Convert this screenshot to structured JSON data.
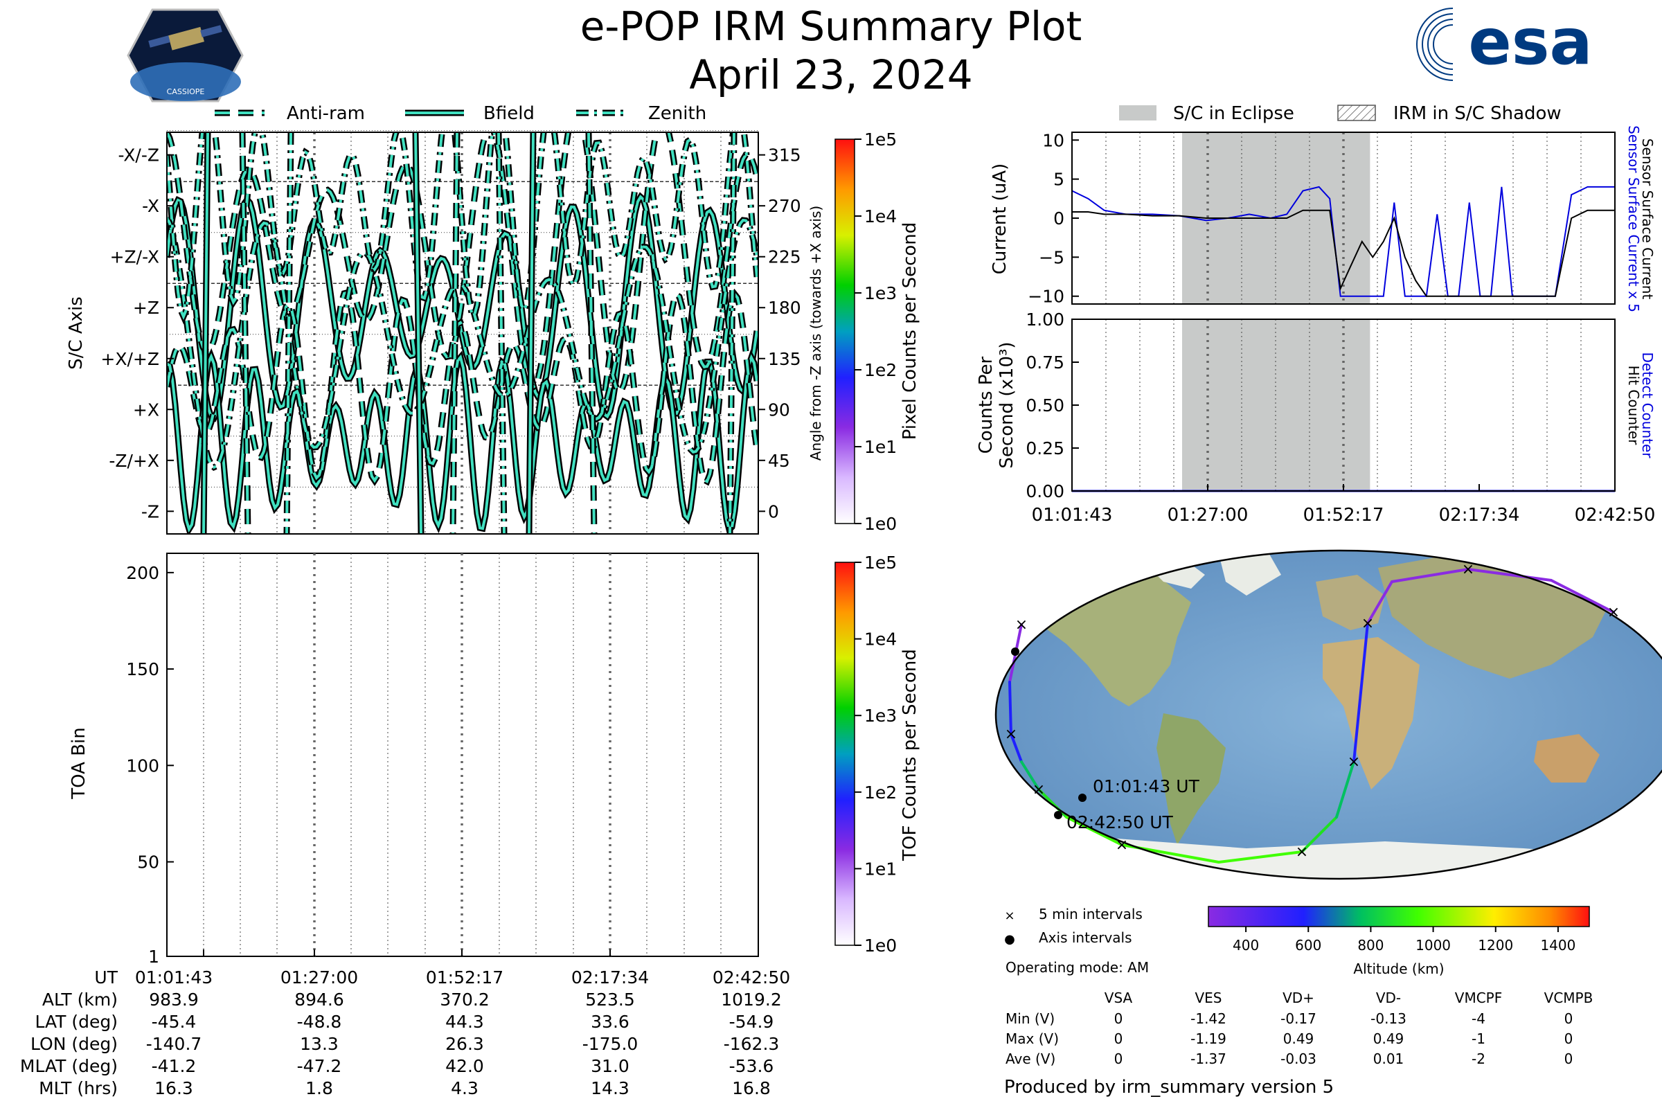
{
  "header": {
    "title": "e-POP IRM Summary Plot",
    "date": "April 23, 2024",
    "left_logo_caption": "CASSIOPE",
    "right_logo_text": "esa"
  },
  "colors": {
    "trace_outline": "#000000",
    "trace_fill": "#40e0c0",
    "eclipse_shade": "#c8cac9",
    "surface_current": "#0000dd",
    "hit_counter": "#0000dd"
  },
  "legend_top_left": {
    "entries": [
      {
        "label": "Anti-ram",
        "style": "dashed"
      },
      {
        "label": "Bfield",
        "style": "solid"
      },
      {
        "label": "Zenith",
        "style": "dashdot"
      }
    ]
  },
  "legend_top_right": {
    "entries": [
      {
        "label": "S/C in Eclipse",
        "style": "gray-fill"
      },
      {
        "label": "IRM in S/C Shadow",
        "style": "hatch"
      }
    ]
  },
  "time_axis": {
    "ticks": [
      "01:01:43",
      "01:27:00",
      "01:52:17",
      "02:17:34",
      "02:42:50"
    ]
  },
  "ephemeris": {
    "row_labels": [
      "UT",
      "ALT (km)",
      "LAT (deg)",
      "LON (deg)",
      "MLAT (deg)",
      "MLT (hrs)"
    ],
    "columns": [
      {
        "UT": "01:01:43",
        "ALT": "983.9",
        "LAT": "-45.4",
        "LON": "-140.7",
        "MLAT": "-41.2",
        "MLT": "16.3"
      },
      {
        "UT": "01:27:00",
        "ALT": "894.6",
        "LAT": "-48.8",
        "LON": "13.3",
        "MLAT": "-47.2",
        "MLT": "1.8"
      },
      {
        "UT": "01:52:17",
        "ALT": "370.2",
        "LAT": "44.3",
        "LON": "26.3",
        "MLAT": "42.0",
        "MLT": "4.3"
      },
      {
        "UT": "02:17:34",
        "ALT": "523.5",
        "LAT": "33.6",
        "LON": "-175.0",
        "MLAT": "31.0",
        "MLT": "14.3"
      },
      {
        "UT": "02:42:50",
        "ALT": "1019.2",
        "LAT": "-54.9",
        "LON": "-162.3",
        "MLAT": "-53.6",
        "MLT": "16.8"
      }
    ]
  },
  "map": {
    "start_label": "01:01:43 UT",
    "end_label": "02:42:50 UT",
    "legend": [
      {
        "marker": "×",
        "label": "5 min intervals"
      },
      {
        "marker": "●",
        "label": "Axis intervals"
      }
    ],
    "operating_mode": "Operating mode: AM",
    "altitude_colorbar_label": "Altitude (km)",
    "altitude_ticks": [
      "400",
      "600",
      "800",
      "1000",
      "1200",
      "1400"
    ]
  },
  "voltage_table": {
    "headers": [
      "",
      "VSA",
      "VES",
      "VD+",
      "VD-",
      "VMCPF",
      "VCMPB"
    ],
    "rows": [
      [
        "Min (V)",
        "0",
        "-1.42",
        "-0.17",
        "-0.13",
        "-4",
        "0"
      ],
      [
        "Max (V)",
        "0",
        "-1.19",
        "0.49",
        "0.49",
        "-1",
        "0"
      ],
      [
        "Ave (V)",
        "0",
        "-1.37",
        "-0.03",
        "0.01",
        "-2",
        "0"
      ]
    ]
  },
  "footer": "Produced by irm_summary version 5",
  "chart_data": [
    {
      "id": "sc_axis_panel",
      "type": "line",
      "ylabel": "S/C Axis",
      "y2label": "Angle from -Z axis (towards +X axis)",
      "ylim": [
        -20,
        335
      ],
      "y_category_ticks": [
        {
          "value": 0,
          "label": "-Z"
        },
        {
          "value": 45,
          "label": "-Z/+X"
        },
        {
          "value": 90,
          "label": "+X"
        },
        {
          "value": 135,
          "label": "+X/+Z"
        },
        {
          "value": 180,
          "label": "+Z"
        },
        {
          "value": 225,
          "label": "+Z/-X"
        },
        {
          "value": 270,
          "label": "-X"
        },
        {
          "value": 315,
          "label": "-X/-Z"
        }
      ],
      "y2_ticks": [
        "0",
        "45",
        "90",
        "135",
        "180",
        "225",
        "270",
        "315"
      ],
      "series": [
        {
          "name": "Anti-ram",
          "style": "dashed"
        },
        {
          "name": "Bfield",
          "style": "solid"
        },
        {
          "name": "Zenith",
          "style": "dashdot"
        }
      ],
      "colorbar": {
        "label": "Pixel Counts per Second",
        "ticks": [
          "1e0",
          "1e1",
          "1e2",
          "1e3",
          "1e4",
          "1e5"
        ]
      }
    },
    {
      "id": "toa_panel",
      "type": "heatmap",
      "ylabel": "TOA Bin",
      "ylim": [
        1,
        210
      ],
      "y_ticks": [
        "1",
        "50",
        "100",
        "150",
        "200"
      ],
      "values": [],
      "colorbar": {
        "label": "TOF Counts per Second",
        "ticks": [
          "1e0",
          "1e1",
          "1e2",
          "1e3",
          "1e4",
          "1e5"
        ]
      }
    },
    {
      "id": "current_panel",
      "type": "line",
      "ylabel": "Current (uA)",
      "ylim": [
        -11,
        11
      ],
      "y_ticks": [
        "10",
        "5",
        "0",
        "−5",
        "−10"
      ],
      "right_labels": [
        "Sensor Surface Current x 5",
        "Sensor Surface Current"
      ],
      "x_minutes": [
        0,
        3,
        6,
        10,
        15,
        20,
        25,
        29,
        33,
        37,
        40,
        43,
        46,
        48,
        50,
        52,
        54,
        56,
        58,
        60,
        62,
        64,
        66,
        68,
        70,
        72,
        74,
        76,
        78,
        80,
        82,
        84,
        86,
        88,
        90,
        93,
        96,
        99,
        101
      ],
      "series": [
        {
          "name": "Sensor Surface Current x 5",
          "values": [
            3.5,
            2.5,
            1.0,
            0.5,
            0.5,
            0.3,
            -0.3,
            0.0,
            0.5,
            0.0,
            0.5,
            3.5,
            4.0,
            2.5,
            -10,
            -10,
            -10,
            -10,
            -10,
            2.0,
            -10,
            -10,
            -10,
            0.5,
            -10,
            -10,
            2.0,
            -10,
            -10,
            4.0,
            -10,
            -10,
            -10,
            -10,
            -10,
            3.0,
            4.0,
            4.0,
            4.0
          ]
        },
        {
          "name": "Sensor Surface Current",
          "values": [
            0.8,
            0.8,
            0.5,
            0.5,
            0.3,
            0.3,
            0.0,
            0.0,
            0.0,
            0.0,
            0.0,
            1.0,
            1.0,
            1.0,
            -9.0,
            -6.0,
            -3.0,
            -5.0,
            -3.0,
            0.0,
            -5.0,
            -8.0,
            -10,
            -10,
            -10,
            -10,
            -10,
            -10,
            -10,
            -10,
            -10,
            -10,
            -10,
            -10,
            -10,
            0.0,
            1.0,
            1.0,
            1.0
          ]
        }
      ]
    },
    {
      "id": "counts_panel",
      "type": "line",
      "ylabel": "Counts Per Second (x10³)",
      "ylim": [
        0,
        1.0
      ],
      "y_ticks": [
        "1.00",
        "0.75",
        "0.50",
        "0.25",
        "0.00"
      ],
      "right_labels": [
        "Detect Counter",
        "Hit Counter"
      ],
      "series": [
        {
          "name": "Detect Counter",
          "values": [
            0,
            0,
            0,
            0,
            0
          ]
        }
      ]
    }
  ]
}
